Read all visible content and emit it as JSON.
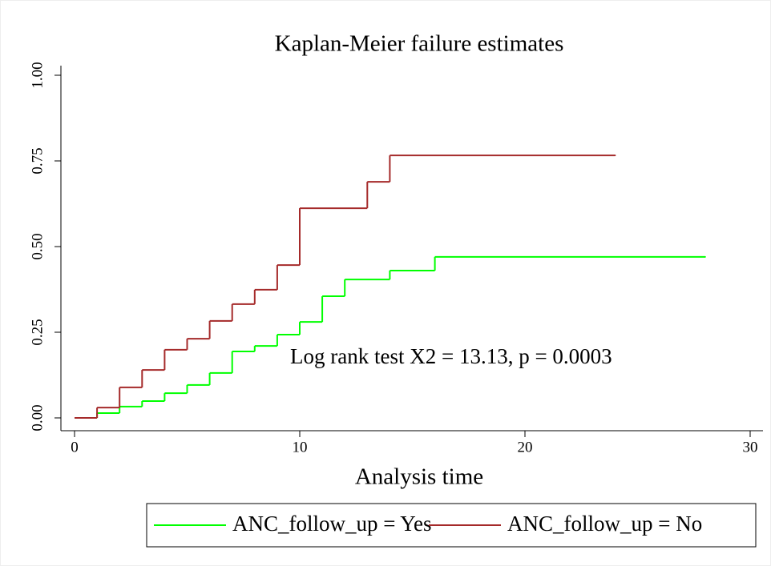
{
  "chart_data": {
    "type": "step",
    "title": "Kaplan-Meier failure estimates",
    "x_label": "Analysis time",
    "annotation": "Log rank test X2 = 13.13, p = 0.0003",
    "xlim": [
      0,
      30
    ],
    "xticks": [
      0,
      10,
      20,
      30
    ],
    "ylim": [
      0,
      1
    ],
    "yticks": [
      {
        "value": 0,
        "label": "0.00"
      },
      {
        "value": 0.25,
        "label": "0.25"
      },
      {
        "value": 0.5,
        "label": "0.50"
      },
      {
        "value": 0.75,
        "label": "0.75"
      },
      {
        "value": 1,
        "label": "1.00"
      }
    ],
    "series": [
      {
        "name": "ANC_follow_up = Yes",
        "color": "#00ff00",
        "x": [
          0,
          1,
          2,
          3,
          4,
          5,
          6,
          7,
          8,
          9,
          10,
          11,
          12,
          14,
          16,
          28
        ],
        "values": [
          0,
          0.014,
          0.033,
          0.049,
          0.072,
          0.096,
          0.131,
          0.194,
          0.21,
          0.243,
          0.28,
          0.355,
          0.404,
          0.43,
          0.47,
          0.47
        ]
      },
      {
        "name": "ANC_follow_up = No",
        "color": "#a52a2a",
        "x": [
          0,
          1,
          2,
          3,
          4,
          5,
          6,
          7,
          8,
          9,
          10,
          13,
          14,
          24
        ],
        "values": [
          0,
          0.03,
          0.089,
          0.14,
          0.199,
          0.231,
          0.283,
          0.332,
          0.374,
          0.446,
          0.612,
          0.689,
          0.766,
          0.766
        ]
      }
    ]
  }
}
